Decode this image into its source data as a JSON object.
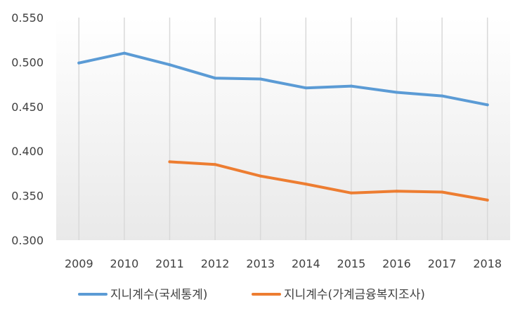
{
  "chart_data": {
    "type": "line",
    "title": "",
    "xlabel": "",
    "ylabel": "",
    "categories": [
      "2009",
      "2010",
      "2011",
      "2012",
      "2013",
      "2014",
      "2015",
      "2016",
      "2017",
      "2018"
    ],
    "ylim": [
      0.3,
      0.55
    ],
    "yticks": [
      "0.300",
      "0.350",
      "0.400",
      "0.450",
      "0.500",
      "0.550"
    ],
    "grid": "vertical",
    "legend_position": "bottom",
    "series": [
      {
        "name": "지니계수(국세통계)",
        "color": "#5B9BD5",
        "values": [
          0.499,
          0.51,
          0.497,
          0.482,
          0.481,
          0.471,
          0.473,
          0.466,
          0.462,
          0.452
        ]
      },
      {
        "name": "지니계수(가계금융복지조사)",
        "color": "#ED7D31",
        "values": [
          null,
          null,
          0.388,
          0.385,
          0.372,
          0.363,
          0.353,
          0.355,
          0.354,
          0.345
        ]
      }
    ]
  }
}
